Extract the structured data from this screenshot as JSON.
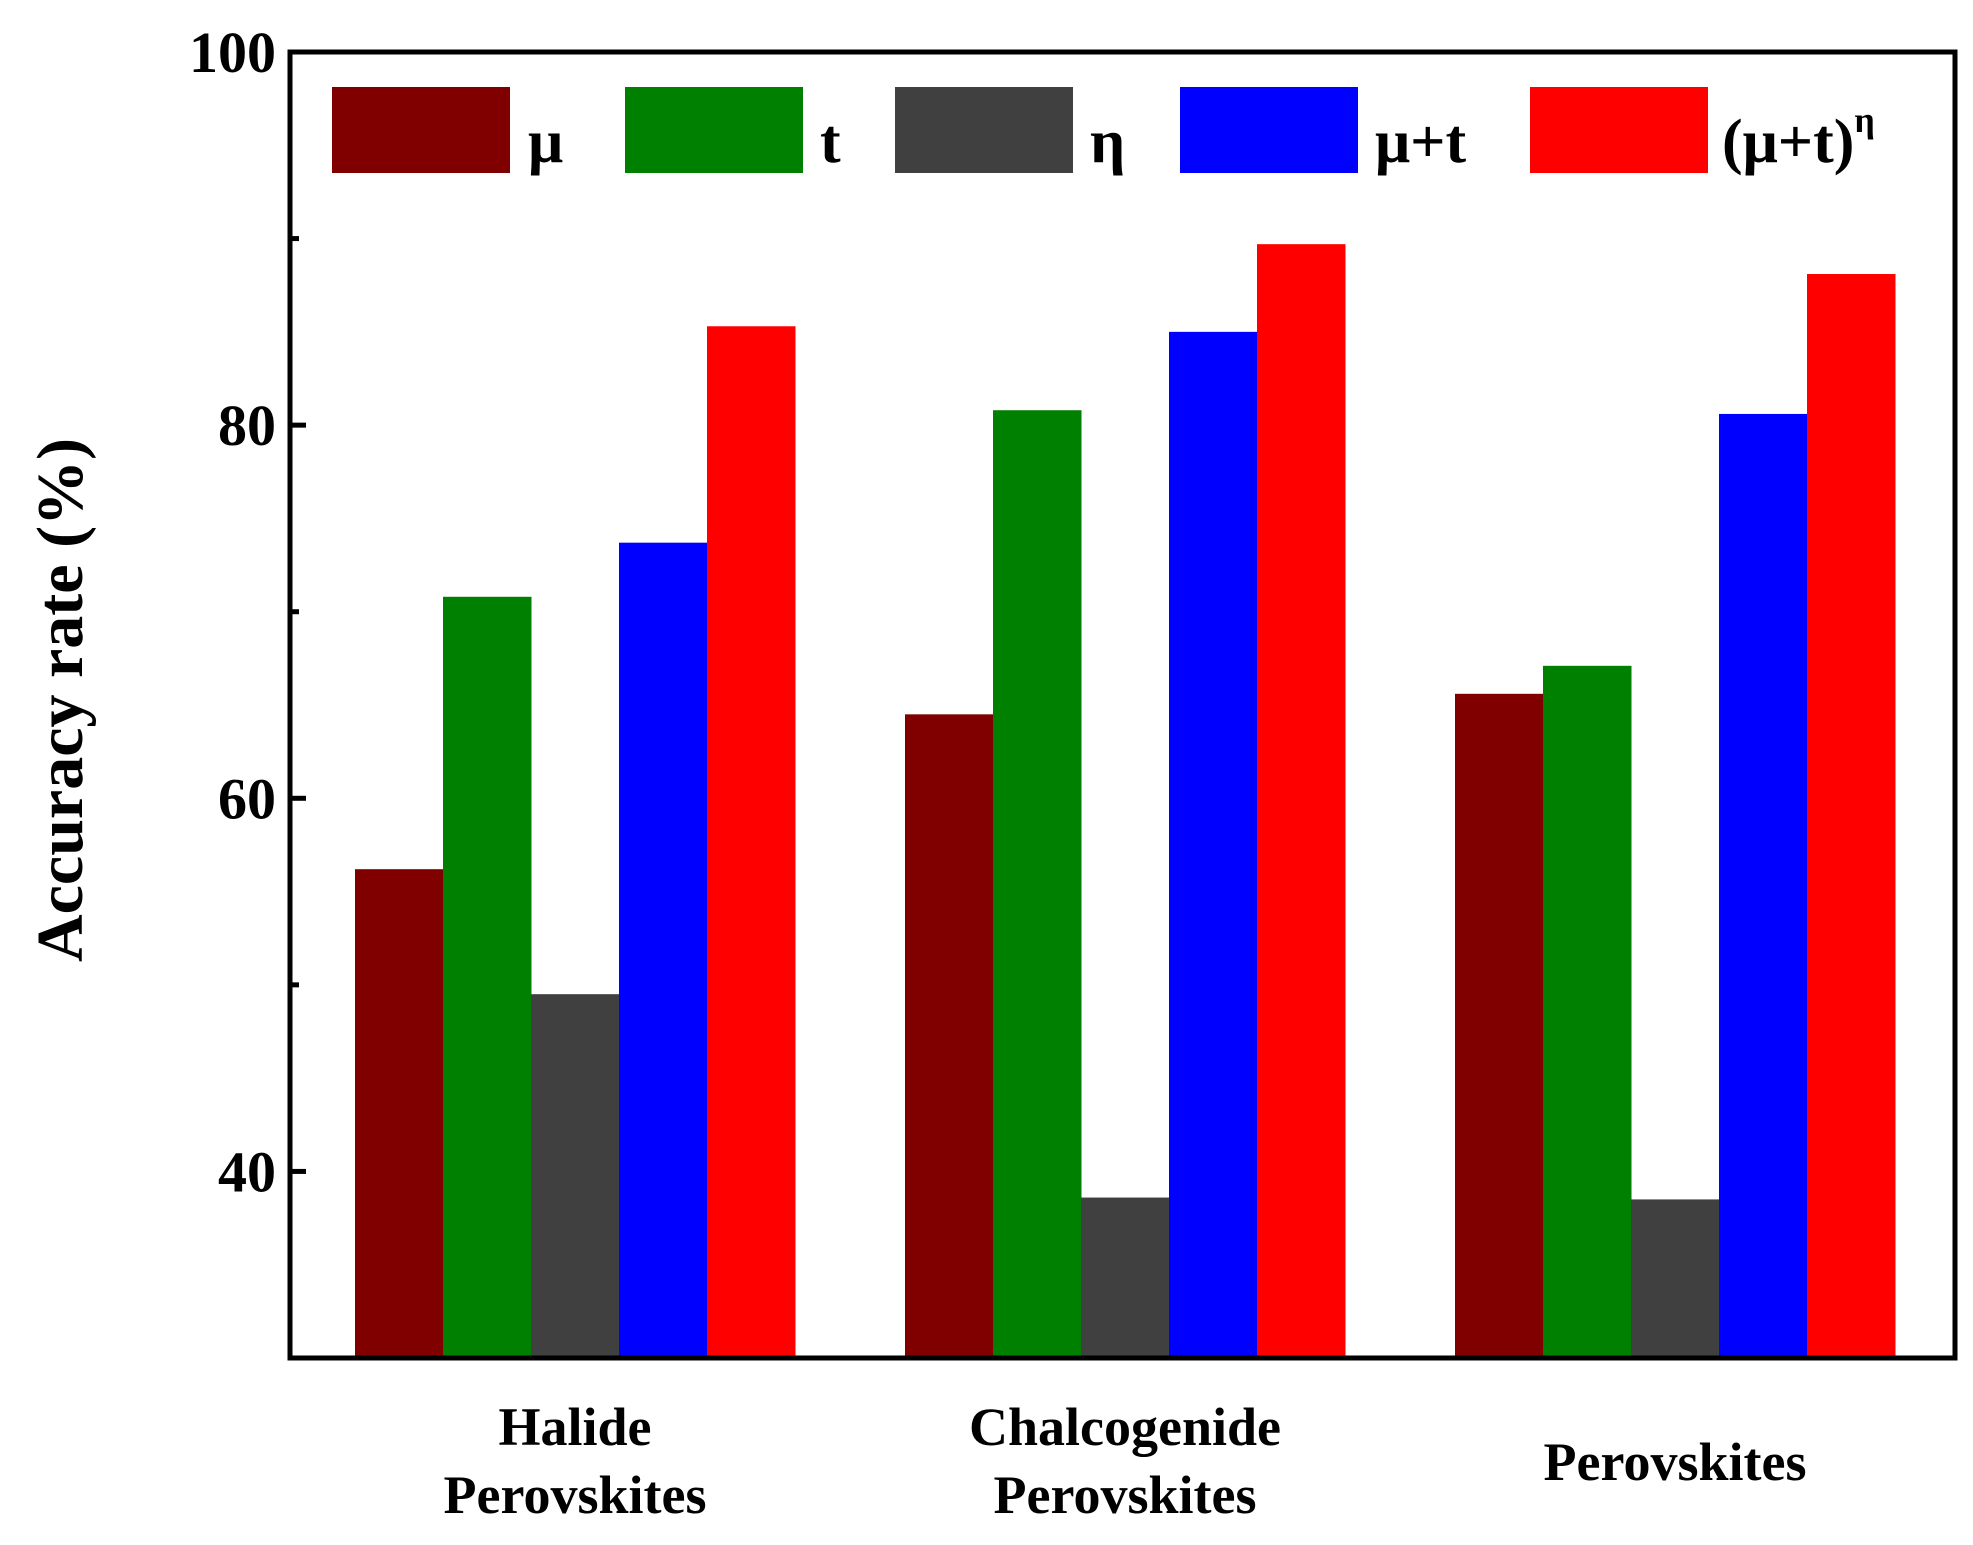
{
  "chart_data": {
    "type": "bar",
    "title": "",
    "xlabel": "",
    "ylabel": "Accuracy rate (%)",
    "ylim": [
      30,
      100
    ],
    "yticks": [
      "40",
      "60",
      "80",
      "100"
    ],
    "grid": false,
    "legend_position": "top",
    "categories": [
      [
        "Halide",
        "Perovskites"
      ],
      [
        "Chalcogenide",
        "Perovskites"
      ],
      [
        "Perovskites"
      ]
    ],
    "series": [
      {
        "name": "μ",
        "color": "#800000",
        "values": [
          56.2,
          64.5,
          65.6
        ]
      },
      {
        "name": "t",
        "color": "#008000",
        "values": [
          70.8,
          80.8,
          67.1
        ]
      },
      {
        "name": "η",
        "color": "#404040",
        "values": [
          49.5,
          38.6,
          38.5
        ]
      },
      {
        "name": "μ+t",
        "color": "#0000ff",
        "values": [
          73.7,
          85.0,
          80.6
        ]
      },
      {
        "name": "(μ+t)",
        "name_superscript": "η",
        "color": "#ff0000",
        "values": [
          85.3,
          89.7,
          88.1
        ]
      }
    ]
  }
}
